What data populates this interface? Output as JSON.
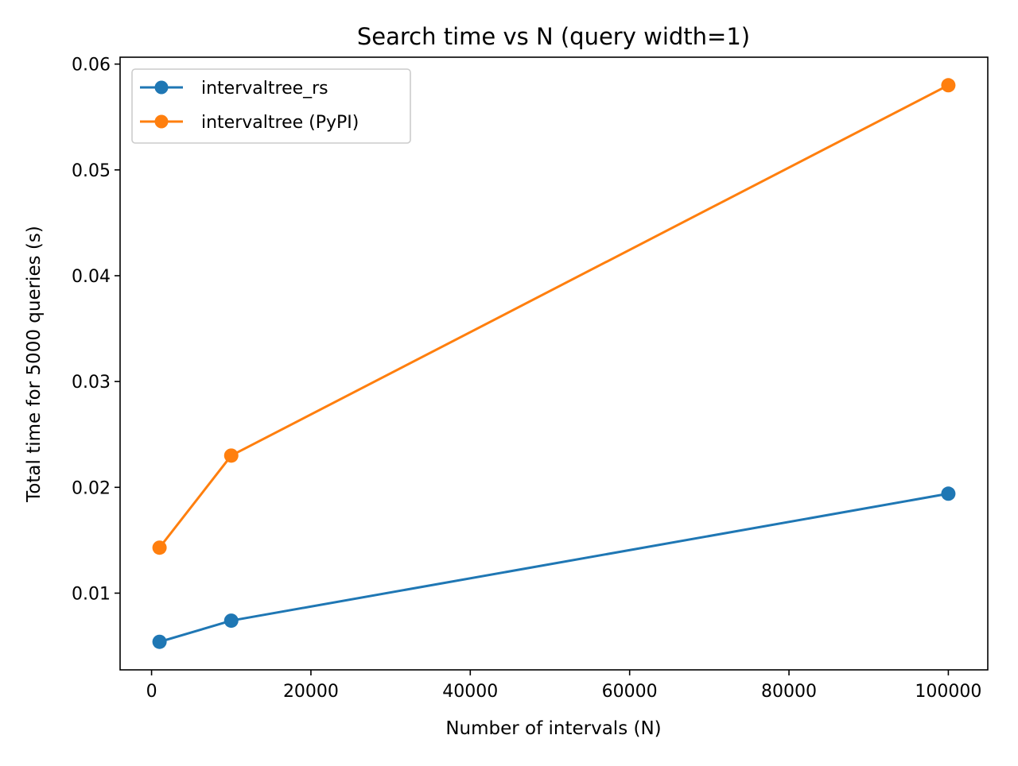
{
  "chart_data": {
    "type": "line",
    "title": "Search time vs N (query width=1)",
    "xlabel": "Number of intervals (N)",
    "ylabel": "Total time for 5000 queries (s)",
    "x": [
      1000,
      10000,
      100000
    ],
    "series": [
      {
        "name": "intervaltree_rs",
        "color": "#1f77b4",
        "marker": "circle",
        "values": [
          0.0054,
          0.0074,
          0.0194
        ]
      },
      {
        "name": "intervaltree (PyPI)",
        "color": "#ff7f0e",
        "marker": "circle",
        "values": [
          0.0143,
          0.023,
          0.058
        ]
      }
    ],
    "xlim": [
      -3950,
      104950
    ],
    "ylim": [
      0.00275,
      0.06065
    ],
    "xticks": [
      0,
      20000,
      40000,
      60000,
      80000,
      100000
    ],
    "xtick_labels": [
      "0",
      "20000",
      "40000",
      "60000",
      "80000",
      "100000"
    ],
    "yticks": [
      0.01,
      0.02,
      0.03,
      0.04,
      0.05,
      0.06
    ],
    "ytick_labels": [
      "0.01",
      "0.02",
      "0.03",
      "0.04",
      "0.05",
      "0.06"
    ],
    "grid": false,
    "legend_position": "upper-left"
  }
}
